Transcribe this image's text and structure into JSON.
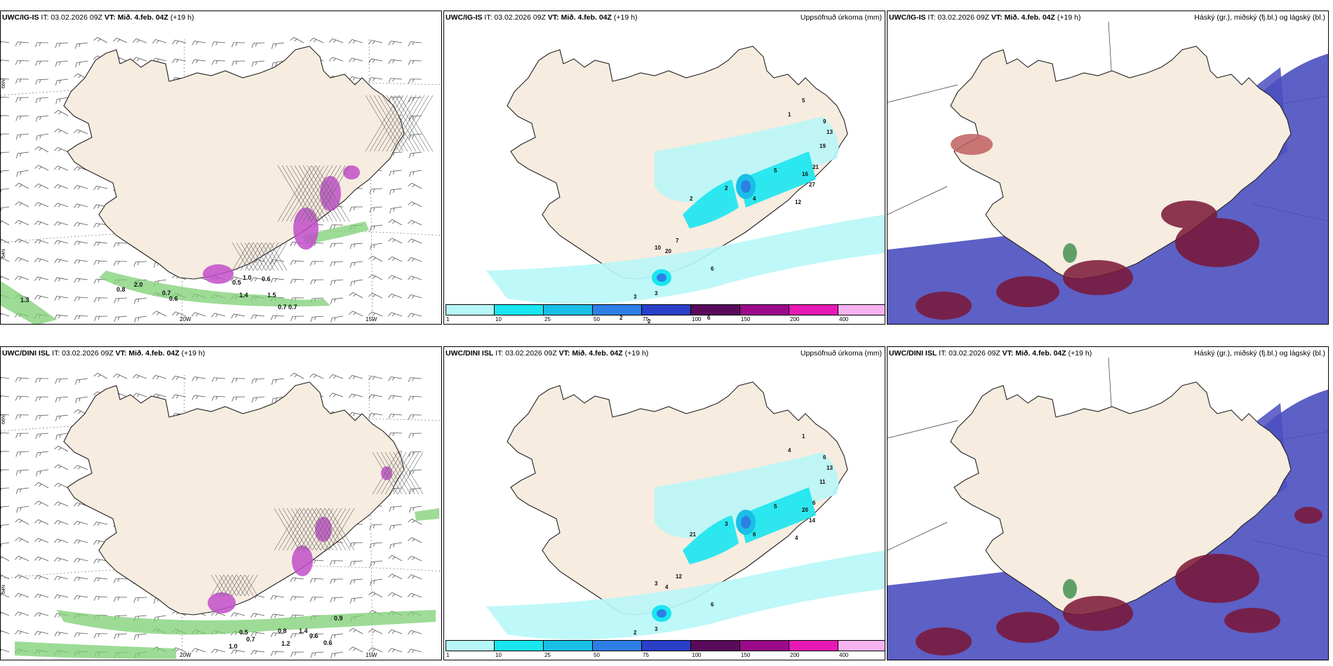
{
  "common": {
    "init_time": "IT: 03.02.2026 09Z",
    "valid_label": "VT:",
    "valid_time": "Mið. 4.feb. 04Z",
    "lead": "(+19 h)"
  },
  "rows": [
    {
      "model": "UWC/IG-IS",
      "key": "ig"
    },
    {
      "model": "UWC/DINI ISL",
      "key": "dini"
    }
  ],
  "precip": {
    "title": "Uppsöfnuð úrkoma (mm)",
    "colorbar": {
      "ticks": [
        "1",
        "10",
        "25",
        "50",
        "75",
        "100",
        "150",
        "200",
        "400"
      ],
      "colors": [
        "#b8f7f7",
        "#19e6f0",
        "#19bfe6",
        "#2d7fe6",
        "#2a3fc8",
        "#5a0a5a",
        "#9a0a8a",
        "#e619b4",
        "#f7b3f0"
      ]
    }
  },
  "cloud": {
    "title": "Háský (gr.), miðský (fj.bl.) og lágský (bl.)"
  },
  "wind": {
    "lon_labels": [
      "20W",
      "15W"
    ],
    "lat_labels": [
      "66N",
      "64N",
      "64N",
      "65N"
    ],
    "ig_values": [
      "0.8",
      "0.7",
      "0.6",
      "0.5",
      "1.0",
      "0.6",
      "1.4",
      "1.5",
      "0.7",
      "0.7",
      "1.3",
      "2.0"
    ],
    "dini_values": [
      "0.5",
      "0.7",
      "0.9",
      "0.6",
      "1.0",
      "1.4",
      "0.8",
      "1.2",
      "0.6"
    ]
  },
  "precip_labels": {
    "ig": [
      "1",
      "5",
      "9",
      "13",
      "19",
      "21",
      "16",
      "27",
      "12",
      "5",
      "4",
      "2",
      "2",
      "7",
      "10",
      "20",
      "6",
      "3",
      "3",
      "2",
      "2",
      "6",
      "5"
    ],
    "dini": [
      "4",
      "1",
      "6",
      "13",
      "11",
      "6",
      "20",
      "14",
      "4",
      "5",
      "6",
      "3",
      "21",
      "12",
      "3",
      "4",
      "6",
      "2",
      "3"
    ]
  }
}
